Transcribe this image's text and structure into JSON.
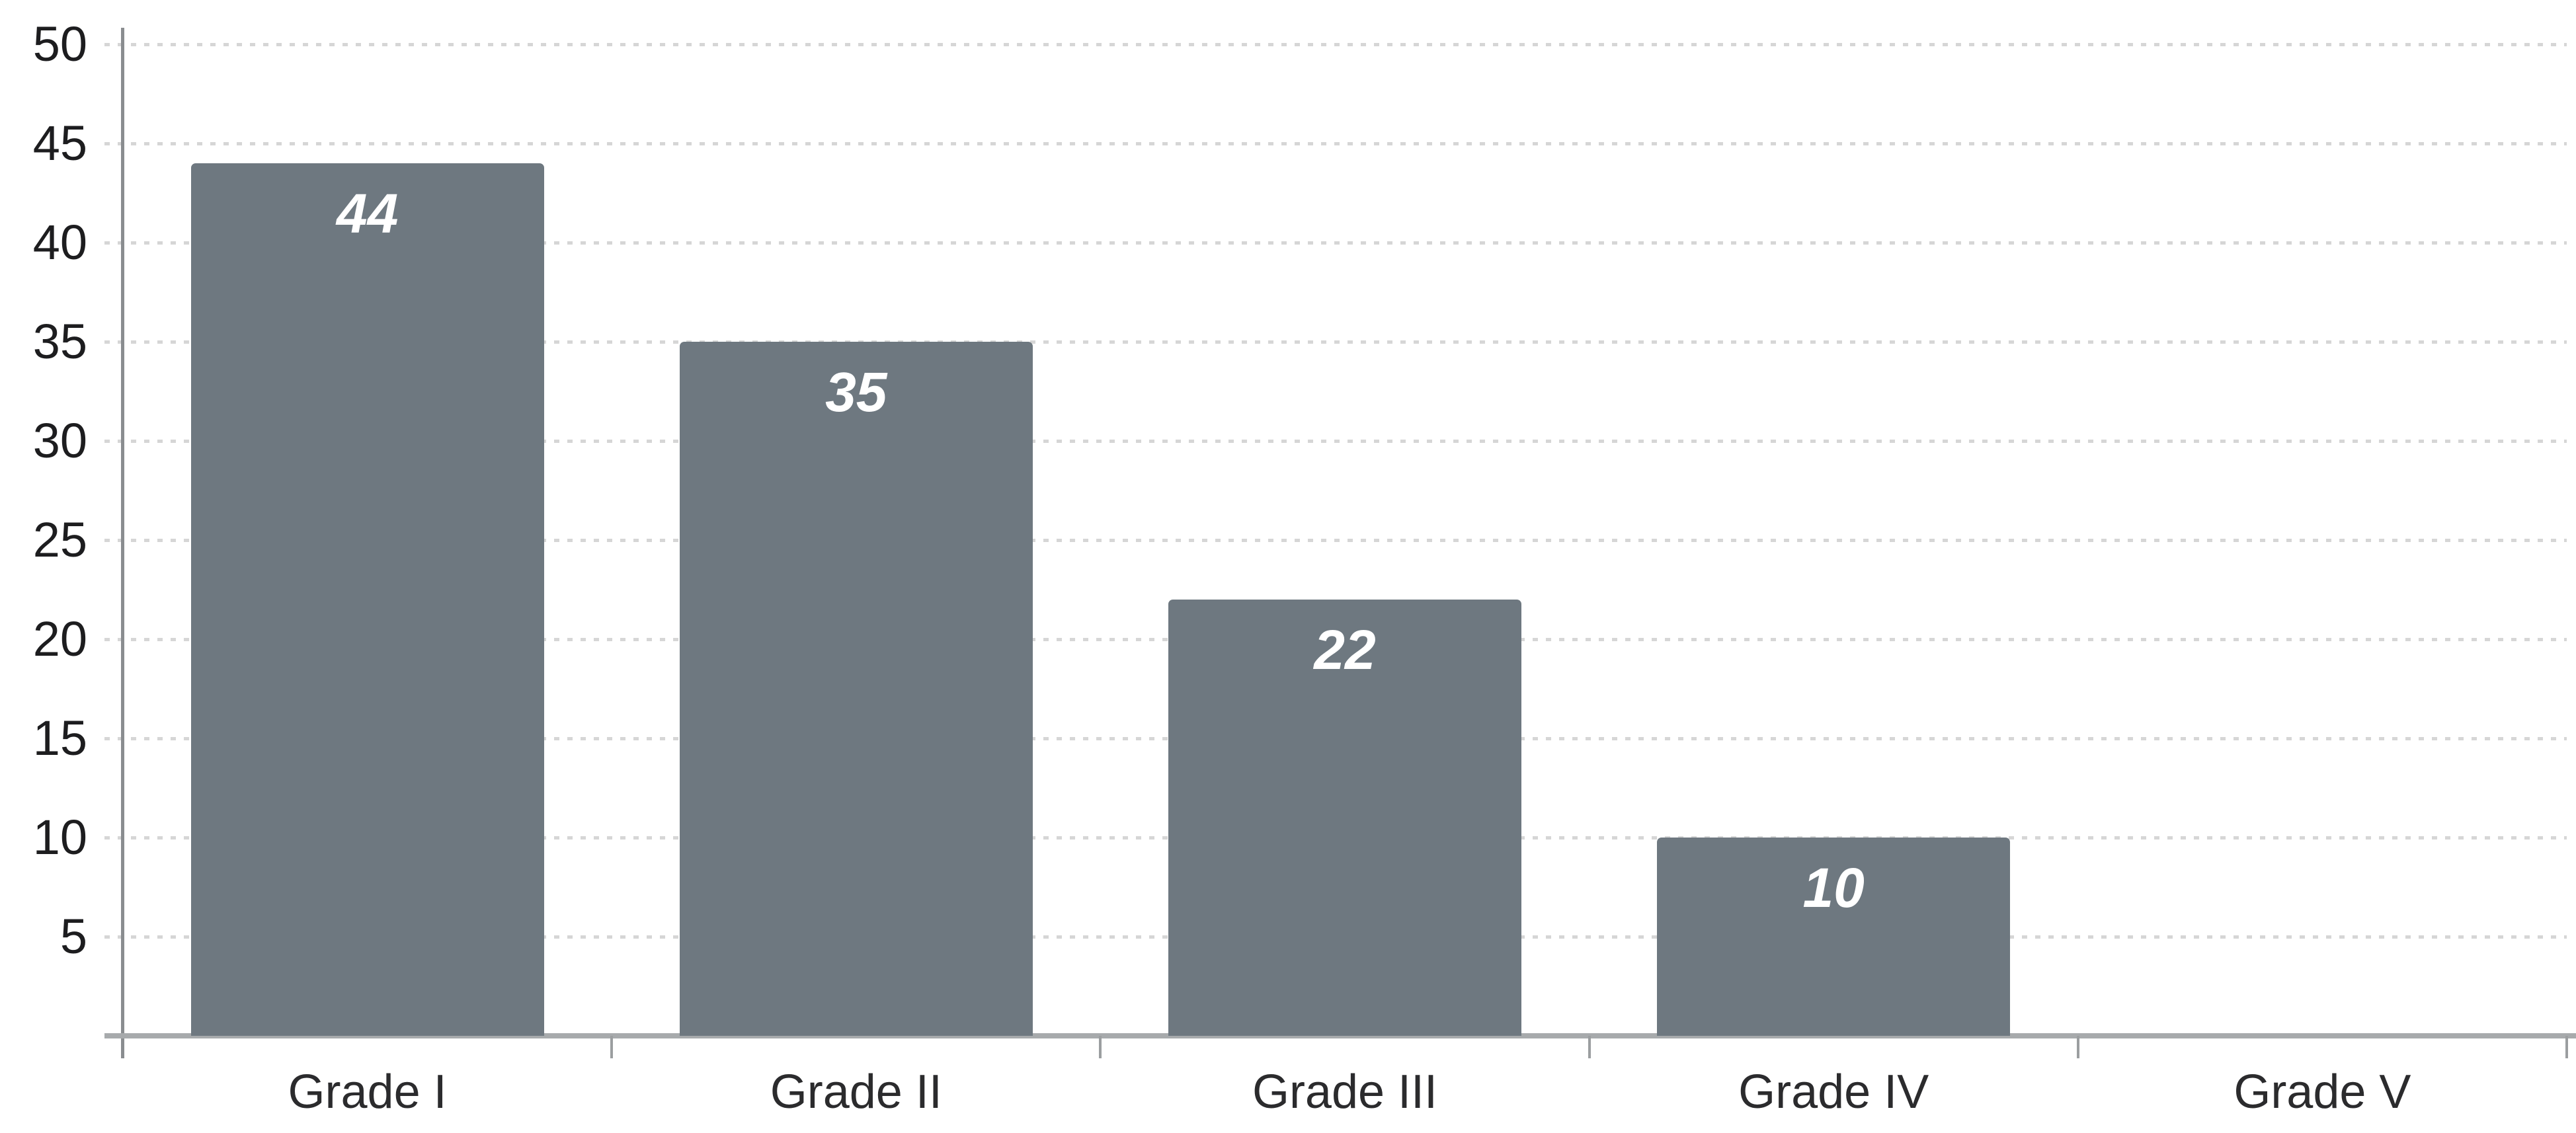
{
  "chart_data": {
    "type": "bar",
    "title": "",
    "xlabel": "",
    "ylabel": "",
    "categories": [
      "Grade I",
      "Grade II",
      "Grade III",
      "Grade IV",
      "Grade V"
    ],
    "values": [
      44,
      35,
      22,
      10,
      0
    ],
    "value_labels": [
      "44",
      "35",
      "22",
      "10",
      ""
    ],
    "ylim": [
      0,
      50
    ],
    "ytick_step": 5,
    "yticks": [
      50,
      45,
      40,
      35,
      30,
      25,
      20,
      15,
      10,
      5
    ],
    "grid": "horizontal-dotted",
    "legend_position": "none",
    "colors": {
      "bar_fill": "#6e7880",
      "bar_value_label": "#ffffff",
      "gridline": "#d6d6d6",
      "y_axis_line": "#8a8d90",
      "x_axis_line": "#a7aaac",
      "boundary_tick": "#9b9ea0",
      "y_tick_label": "#1d1d1f",
      "x_category_label": "#2b2b2d",
      "background": "#ffffff"
    }
  }
}
